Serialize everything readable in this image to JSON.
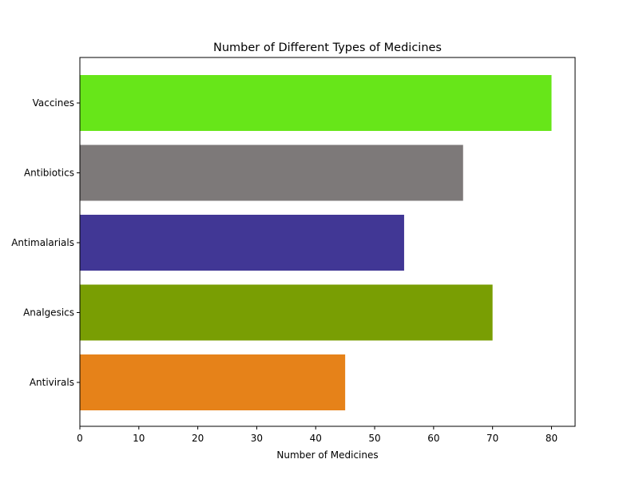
{
  "chart_data": {
    "type": "bar",
    "orientation": "horizontal",
    "title": "Number of Different Types of Medicines",
    "xlabel": "Number of Medicines",
    "ylabel": "",
    "categories": [
      "Antivirals",
      "Analgesics",
      "Antimalarials",
      "Antibiotics",
      "Vaccines"
    ],
    "values": [
      45,
      70,
      55,
      65,
      80
    ],
    "colors": [
      "#e68219",
      "#799e03",
      "#413795",
      "#7d7979",
      "#67e619"
    ],
    "xlim": [
      0,
      84
    ],
    "xticks": [
      0,
      10,
      20,
      30,
      40,
      50,
      60,
      70,
      80
    ],
    "grid": false,
    "legend": "none"
  }
}
